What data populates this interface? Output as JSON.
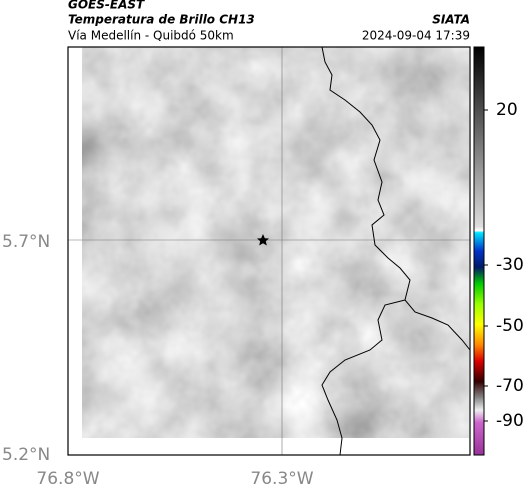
{
  "header": {
    "title": "GOES-EAST",
    "subtitle": "Temperatura de Brillo CH13",
    "source": "SIATA",
    "route": "Vía Medellín - Quibdó 50km",
    "timestamp": "2024-09-04 17:39"
  },
  "axes": {
    "y_labels": [
      "5.7°N",
      "5.2°N"
    ],
    "x_labels": [
      "76.8°W",
      "76.3°W"
    ]
  },
  "colorbar": {
    "labels": [
      "20",
      "-30",
      "-50",
      "-70",
      "-90"
    ]
  }
}
